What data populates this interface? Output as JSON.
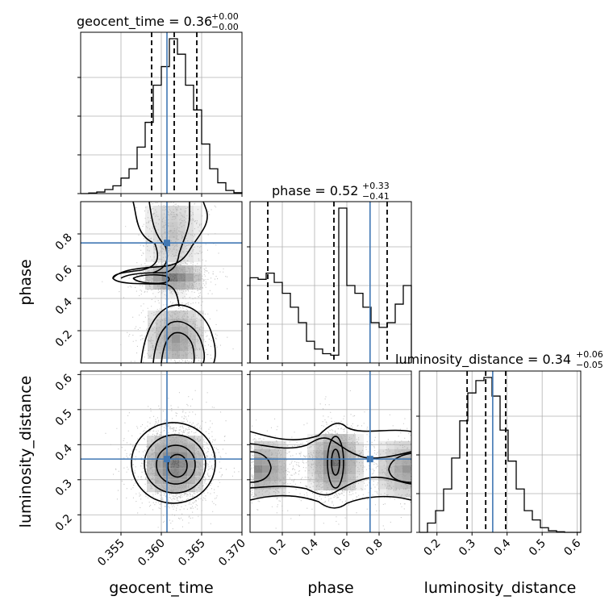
{
  "chart_data": {
    "type": "corner",
    "truth_color": "#4178b4",
    "parameters": [
      {
        "name": "geocent_time",
        "axis_label": "geocent_time",
        "range": [
          0.35,
          0.37
        ],
        "ticks": [
          0.355,
          0.36,
          0.365,
          0.37
        ],
        "tick_labels": [
          "0.355",
          "0.360",
          "0.365",
          "0.370"
        ],
        "truth": 0.3607,
        "quantiles": [
          0.3588,
          0.3616,
          0.3644
        ],
        "title": {
          "label": "geocent_time = 0.36",
          "plus": "+0.00",
          "minus": "−0.00"
        },
        "hist_edges": [
          0.35,
          0.351,
          0.352,
          0.353,
          0.354,
          0.355,
          0.356,
          0.357,
          0.358,
          0.359,
          0.36,
          0.361,
          0.362,
          0.363,
          0.364,
          0.365,
          0.366,
          0.367,
          0.368,
          0.369,
          0.37
        ],
        "hist_counts": [
          0,
          0.4,
          1,
          2.6,
          5,
          10,
          16,
          30,
          46,
          70,
          82,
          100,
          90,
          70,
          54,
          32,
          16,
          7,
          2,
          0.6
        ]
      },
      {
        "name": "phase",
        "axis_label": "phase",
        "range": [
          0.0,
          1.0
        ],
        "ticks": [
          0.2,
          0.4,
          0.6,
          0.8
        ],
        "tick_labels": [
          "0.2",
          "0.4",
          "0.6",
          "0.8"
        ],
        "truth": 0.744,
        "quantiles": [
          0.11,
          0.52,
          0.85
        ],
        "title": {
          "label": "phase = 0.52",
          "plus": "+0.33",
          "minus": "−0.41"
        },
        "hist_edges": [
          0.0,
          0.05,
          0.1,
          0.15,
          0.2,
          0.25,
          0.3,
          0.35,
          0.4,
          0.45,
          0.5,
          0.55,
          0.6,
          0.65,
          0.7,
          0.75,
          0.8,
          0.85,
          0.9,
          0.95,
          1.0
        ],
        "hist_counts": [
          55,
          54,
          58,
          52,
          45,
          36,
          26,
          14,
          9,
          6,
          5,
          100,
          50,
          45,
          36,
          26,
          23,
          26,
          38,
          50
        ]
      },
      {
        "name": "luminosity_distance",
        "axis_label": "luminosity_distance",
        "range": [
          0.15,
          0.61
        ],
        "ticks": [
          0.2,
          0.3,
          0.4,
          0.5,
          0.6
        ],
        "tick_labels": [
          "0.2",
          "0.3",
          "0.4",
          "0.5",
          "0.6"
        ],
        "truth": 0.359,
        "quantiles": [
          0.286,
          0.339,
          0.396
        ],
        "title": {
          "label": "luminosity_distance = 0.34",
          "plus": "+0.06",
          "minus": "−0.05"
        },
        "hist_edges": [
          0.15,
          0.173,
          0.196,
          0.219,
          0.242,
          0.265,
          0.288,
          0.311,
          0.334,
          0.357,
          0.38,
          0.403,
          0.426,
          0.449,
          0.472,
          0.495,
          0.518,
          0.541,
          0.564,
          0.587,
          0.61
        ],
        "hist_counts": [
          0,
          6,
          14,
          28,
          48,
          72,
          90,
          98,
          100,
          88,
          66,
          46,
          28,
          14,
          8,
          3,
          1,
          0.4,
          0,
          0
        ]
      }
    ],
    "lower_panels": [
      {
        "x": "geocent_time",
        "y": "phase"
      },
      {
        "x": "geocent_time",
        "y": "luminosity_distance"
      },
      {
        "x": "phase",
        "y": "luminosity_distance"
      }
    ]
  }
}
